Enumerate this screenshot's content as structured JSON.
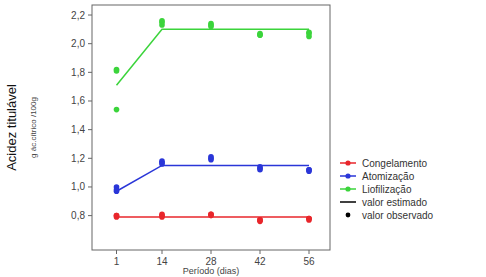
{
  "chart_data": {
    "type": "scatter",
    "y_label": "Acidez titulável",
    "y_unit": "g ác.cítrico /100g",
    "x_label": "Período (dias)",
    "xlim": [
      -6,
      62
    ],
    "xticks": [
      1,
      14,
      28,
      42,
      56
    ],
    "ylim": [
      0.56,
      2.27
    ],
    "yticks": [
      {
        "value": 0.8,
        "label": "0,8"
      },
      {
        "value": 1.0,
        "label": "1,0"
      },
      {
        "value": 1.2,
        "label": "1,2"
      },
      {
        "value": 1.4,
        "label": "1,4"
      },
      {
        "value": 1.6,
        "label": "1,6"
      },
      {
        "value": 1.8,
        "label": "1,8"
      },
      {
        "value": 2.0,
        "label": "2,0"
      },
      {
        "value": 2.2,
        "label": "2,2"
      }
    ],
    "grid": false,
    "legend": "right",
    "series": [
      {
        "name": "Congelamento",
        "color": "#e8262b",
        "marker": "circle",
        "x": [
          1,
          1,
          1,
          14,
          14,
          14,
          28,
          28,
          28,
          42,
          42,
          42,
          56,
          56,
          56
        ],
        "values": [
          0.8,
          0.79,
          0.8,
          0.8,
          0.79,
          0.81,
          0.81,
          0.8,
          0.81,
          0.77,
          0.76,
          0.77,
          0.78,
          0.77,
          0.78
        ],
        "fit": {
          "x": [
            1,
            14,
            56
          ],
          "values": [
            0.79,
            0.79,
            0.79
          ]
        }
      },
      {
        "name": "Atomização",
        "color": "#2a36d8",
        "marker": "circle",
        "x": [
          1,
          1,
          1,
          14,
          14,
          14,
          28,
          28,
          28,
          42,
          42,
          42,
          56,
          56,
          56
        ],
        "values": [
          1.0,
          0.97,
          0.98,
          1.17,
          1.18,
          1.16,
          1.2,
          1.19,
          1.21,
          1.12,
          1.14,
          1.13,
          1.12,
          1.12,
          1.11
        ],
        "fit": {
          "x": [
            1,
            14,
            56
          ],
          "values": [
            0.97,
            1.15,
            1.15
          ]
        }
      },
      {
        "name": "Liofilização",
        "color": "#3bd43b",
        "marker": "circle",
        "x": [
          1,
          1,
          1,
          14,
          14,
          14,
          28,
          28,
          28,
          42,
          42,
          42,
          56,
          56,
          56
        ],
        "values": [
          1.81,
          1.82,
          1.54,
          2.15,
          2.13,
          2.16,
          2.13,
          2.14,
          2.12,
          2.07,
          2.06,
          2.06,
          2.07,
          2.05,
          2.08
        ],
        "fit": {
          "x": [
            1,
            14,
            56
          ],
          "values": [
            1.71,
            2.1,
            2.1
          ]
        }
      }
    ],
    "legend_key": [
      {
        "label": "valor estimado",
        "line_style": "solid",
        "color": "#000000"
      },
      {
        "label": "valor observado",
        "marker": "circle",
        "color": "#000000"
      }
    ]
  }
}
